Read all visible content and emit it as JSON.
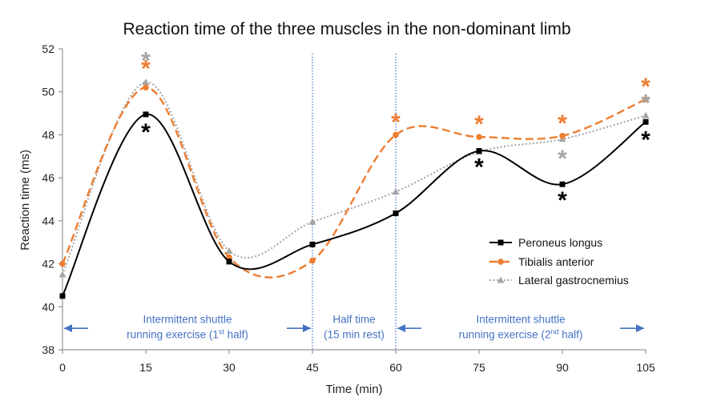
{
  "chart_data": {
    "type": "line",
    "title": "Reaction time of the three muscles in the non-dominant limb",
    "xlabel": "Time (min)",
    "ylabel": "Reaction time (ms)",
    "xlim": [
      0,
      105
    ],
    "ylim": [
      38,
      52
    ],
    "x": [
      0,
      15,
      30,
      45,
      60,
      75,
      90,
      105
    ],
    "x_ticks": [
      0,
      15,
      30,
      45,
      60,
      75,
      90,
      105
    ],
    "y_ticks": [
      38,
      40,
      42,
      44,
      46,
      48,
      50,
      52
    ],
    "grid": false,
    "legend_position": "right",
    "series": [
      {
        "name": "Peroneus longus",
        "color": "#000000",
        "line_style": "solid",
        "marker": "square",
        "values": [
          40.5,
          48.95,
          42.1,
          42.9,
          44.35,
          47.25,
          45.7,
          48.6
        ],
        "significance_marks_at": [
          15,
          75,
          90,
          105
        ]
      },
      {
        "name": "Tibialis anterior",
        "color": "#ED7D31",
        "line_style": "dashed",
        "marker": "circle",
        "values": [
          42.0,
          50.2,
          42.3,
          42.15,
          48.0,
          47.9,
          47.95,
          49.65
        ],
        "significance_marks_at": [
          15,
          60,
          75,
          90,
          105
        ]
      },
      {
        "name": "Lateral gastrocnemius",
        "color": "#A5A5A5",
        "line_style": "dotted",
        "marker": "triangle",
        "values": [
          41.5,
          50.45,
          42.6,
          43.95,
          45.35,
          47.2,
          47.8,
          48.9
        ],
        "significance_marks_at": [
          15,
          90,
          105
        ]
      }
    ],
    "star_symbol": "*",
    "phase_dividers_x": [
      45,
      60
    ],
    "phase_annotations": [
      {
        "lines": [
          "Intermittent shuttle",
          "running exercise (1st half)"
        ],
        "x_start": 0,
        "x_end": 45
      },
      {
        "lines": [
          "Half time",
          "(15 min rest)"
        ],
        "x_start": 45,
        "x_end": 60
      },
      {
        "lines": [
          "Intermittent shuttle",
          "running exercise (2nd half)"
        ],
        "x_start": 60,
        "x_end": 105
      }
    ]
  }
}
